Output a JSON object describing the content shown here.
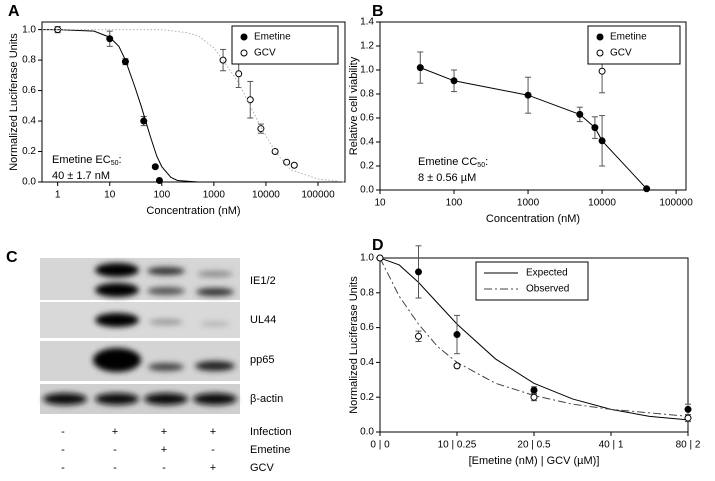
{
  "chart_data": [
    {
      "type": "scatter",
      "label": "A",
      "ylabel": "Normalized Luciferase Units",
      "xlabel": "Concentration (nM)",
      "xlog": true,
      "xlim": [
        0.5,
        330000
      ],
      "xticks": [
        1,
        10,
        100,
        1000,
        10000,
        100000
      ],
      "ylim": [
        0,
        1.05
      ],
      "yticks": [
        {
          "value": 0,
          "label": "0.0"
        },
        0.2,
        0.4,
        0.6,
        0.8,
        {
          "value": 1,
          "label": "1.0"
        }
      ],
      "legend": "upper right",
      "annotation": {
        "text": "Emetine EC",
        "subscript": "50",
        "suffix": ":",
        "line2": "40 ± 1.7 nM"
      },
      "series": [
        {
          "name": "Emetine",
          "marker": "filled",
          "line": "none",
          "color": "#000000",
          "x": [
            10,
            20,
            45,
            75,
            90
          ],
          "values": [
            0.94,
            0.79,
            0.4,
            0.1,
            0.01
          ],
          "errors": [
            0.05,
            0.02,
            0.03,
            0.01,
            0.01
          ]
        },
        {
          "name": "GCV",
          "marker": "open",
          "line": "none",
          "color": "#000000",
          "x": [
            1,
            1500,
            3000,
            5000,
            8000,
            15000,
            25000,
            35000
          ],
          "values": [
            1.0,
            0.8,
            0.71,
            0.54,
            0.35,
            0.2,
            0.13,
            0.11
          ],
          "errors": [
            0.02,
            0.07,
            0.09,
            0.12,
            0.03,
            0.01,
            0.01,
            0.01
          ]
        },
        {
          "line": "solid",
          "color": "#000000",
          "x": [
            0.5,
            1,
            5,
            10,
            15,
            20,
            30,
            40,
            50,
            60,
            80,
            100,
            150,
            200,
            500,
            330000
          ],
          "values": [
            1.0,
            1.0,
            0.99,
            0.95,
            0.89,
            0.8,
            0.63,
            0.5,
            0.39,
            0.3,
            0.17,
            0.1,
            0.03,
            0.01,
            0.0,
            0.0
          ]
        },
        {
          "line": "dotted",
          "color": "#b0b0b0",
          "x": [
            0.5,
            100,
            300,
            500,
            1000,
            1500,
            3000,
            5000,
            8000,
            15000,
            30000,
            100000,
            330000
          ],
          "values": [
            1.0,
            1.0,
            0.98,
            0.96,
            0.88,
            0.8,
            0.65,
            0.5,
            0.36,
            0.2,
            0.08,
            0.02,
            0.0
          ]
        }
      ]
    },
    {
      "type": "scatter",
      "label": "B",
      "ylabel": "Relative cell viability",
      "xlabel": "Concentration (nM)",
      "xlog": true,
      "xlim": [
        10,
        136000
      ],
      "xticks": [
        10,
        100,
        1000,
        10000,
        100000
      ],
      "ylim": [
        0,
        1.4
      ],
      "yticks": [
        {
          "value": 0,
          "label": "0.0"
        },
        0.2,
        0.4,
        0.6,
        0.8,
        {
          "value": 1,
          "label": "1.0"
        },
        1.2,
        1.4
      ],
      "legend": "upper right",
      "annotation": {
        "text": "Emetine CC",
        "subscript": "50",
        "suffix": ":",
        "line2": "8 ± 0.56 µM"
      },
      "series": [
        {
          "name": "Emetine",
          "marker": "filled",
          "line": "solid",
          "color": "#000000",
          "x": [
            35,
            100,
            1000,
            5000,
            8000,
            10000,
            40000
          ],
          "values": [
            1.02,
            0.91,
            0.79,
            0.63,
            0.52,
            0.41,
            0.01
          ],
          "errors": [
            0.13,
            0.09,
            0.15,
            0.06,
            0.09,
            0.21,
            0.0
          ]
        },
        {
          "name": "GCV",
          "marker": "open",
          "line": "none",
          "color": "#000000",
          "x": [
            10000
          ],
          "values": [
            0.99
          ],
          "errors": [
            0.18
          ]
        }
      ]
    },
    {
      "type": "scatter",
      "label": "D",
      "ylabel": "Normalized Luciferase Units",
      "xlabel": "[Emetine (nM) | GCV (µM)]",
      "xlog": false,
      "xlim": [
        0,
        4
      ],
      "xticks": [
        {
          "value": 0,
          "label": "0 | 0"
        },
        {
          "value": 1,
          "label": "10 | 0.25"
        },
        {
          "value": 2,
          "label": "20 | 0.5"
        },
        {
          "value": 3,
          "label": "40 | 1"
        },
        {
          "value": 4,
          "label": "80 | 2"
        }
      ],
      "ylim": [
        0,
        1
      ],
      "yticks": [
        {
          "value": 0,
          "label": "0.0"
        },
        0.2,
        0.4,
        0.6,
        0.8,
        {
          "value": 1,
          "label": "1.0"
        }
      ],
      "legend": "upper center",
      "series": [
        {
          "name": "Expected",
          "line": "solid",
          "color": "#000000",
          "x": [
            0,
            0.25,
            0.5,
            0.75,
            1,
            1.5,
            2,
            2.5,
            3,
            3.5,
            4
          ],
          "values": [
            1.0,
            0.96,
            0.86,
            0.74,
            0.62,
            0.42,
            0.28,
            0.19,
            0.13,
            0.09,
            0.07
          ]
        },
        {
          "name": "Observed",
          "line": "dashed",
          "color": "#444444",
          "x": [
            0,
            0.25,
            0.5,
            0.75,
            1,
            1.5,
            2,
            2.5,
            3,
            3.5,
            4
          ],
          "values": [
            1.0,
            0.78,
            0.62,
            0.49,
            0.4,
            0.28,
            0.21,
            0.16,
            0.13,
            0.11,
            0.09
          ]
        },
        {
          "marker": "filled",
          "line": "none",
          "color": "#000000",
          "x": [
            0.5,
            1,
            2,
            4
          ],
          "values": [
            0.92,
            0.56,
            0.24,
            0.13
          ],
          "errors": [
            0.15,
            0.11,
            0.02,
            0.03
          ]
        },
        {
          "marker": "open",
          "line": "none",
          "color": "#000000",
          "x": [
            0,
            0.5,
            1,
            2,
            4
          ],
          "values": [
            1.0,
            0.55,
            0.38,
            0.2,
            0.08
          ],
          "errors": [
            0.0,
            0.03,
            0.01,
            0.02,
            0.02
          ]
        }
      ]
    }
  ],
  "blot": {
    "label": "C",
    "proteins": [
      "IE1/2",
      "UL44",
      "pp65",
      "β-actin"
    ],
    "conditions": [
      {
        "name": "Infection",
        "signs": [
          "-",
          "+",
          "+",
          "+"
        ]
      },
      {
        "name": "Emetine",
        "signs": [
          "-",
          "-",
          "+",
          "-"
        ]
      },
      {
        "name": "GCV",
        "signs": [
          "-",
          "-",
          "-",
          "+"
        ]
      }
    ]
  }
}
